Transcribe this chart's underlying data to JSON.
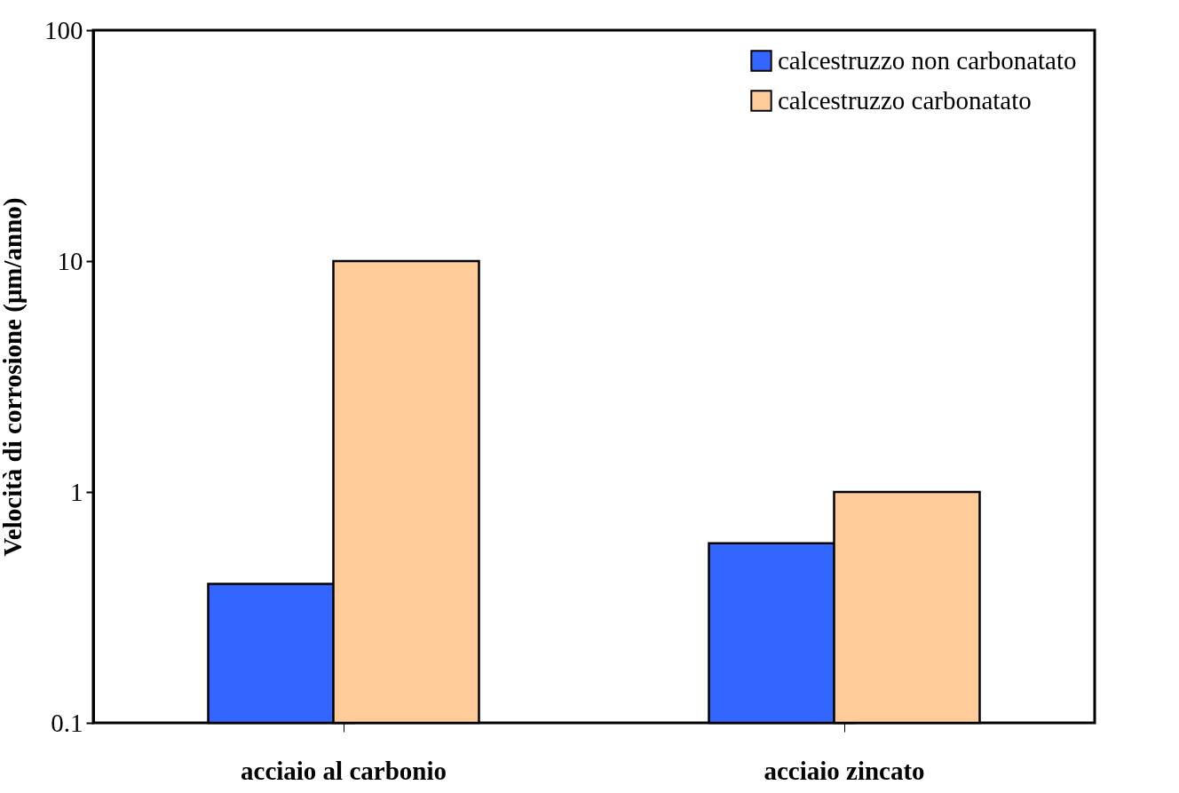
{
  "chart_data": {
    "type": "bar",
    "ylabel": "Velocità di corrosione (μm/anno)",
    "categories": [
      "acciaio al carbonio",
      "acciaio zincato"
    ],
    "series": [
      {
        "name": "calcestruzzo non carbonatato",
        "color": "#3366ff",
        "values": [
          0.4,
          0.6
        ]
      },
      {
        "name": "calcestruzzo carbonatato",
        "color": "#ffcc99",
        "values": [
          10,
          1
        ]
      }
    ],
    "log": "y",
    "ylim": [
      0.1,
      100
    ],
    "yticks": [
      0.1,
      1,
      10,
      100
    ],
    "grid": false,
    "legend": "top right"
  }
}
